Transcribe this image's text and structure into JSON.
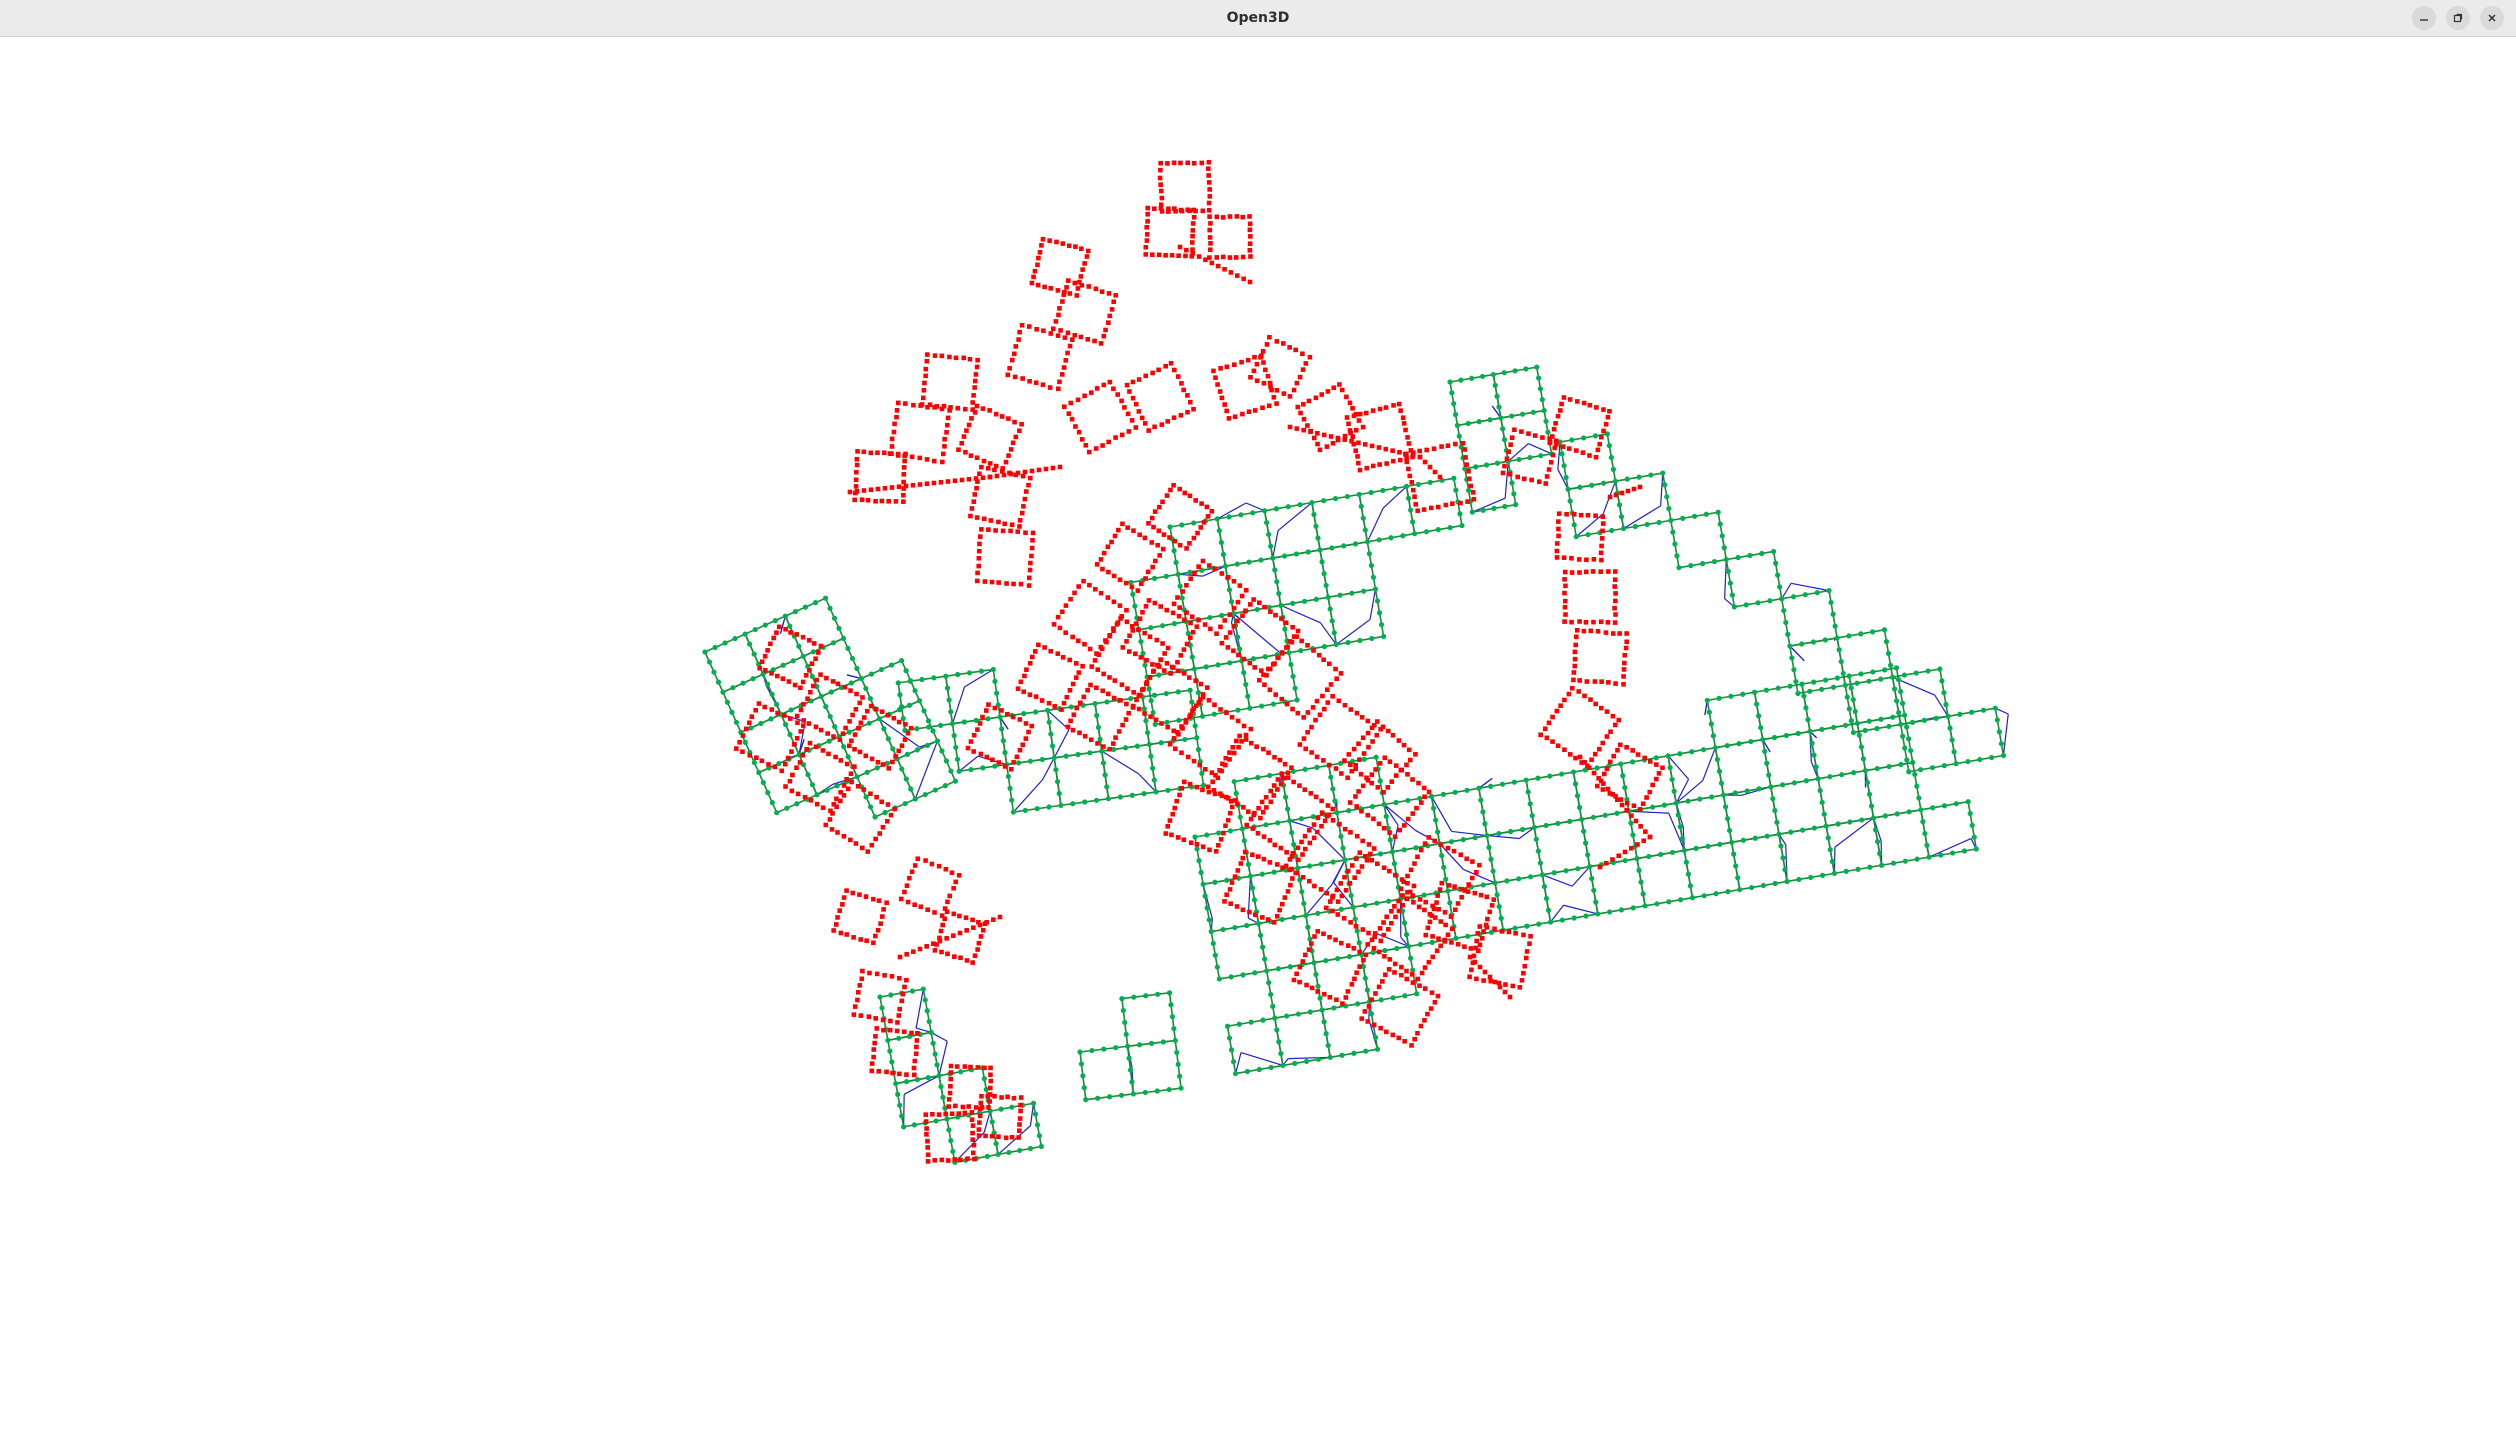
{
  "window": {
    "title": "Open3D",
    "controls": [
      {
        "name": "minimize",
        "icon": "minimize-icon"
      },
      {
        "name": "maximize",
        "icon": "maximize-icon"
      },
      {
        "name": "close",
        "icon": "close-icon"
      }
    ]
  },
  "scene": {
    "background": "#ffffff",
    "colors": {
      "reference_path_points": "#ff0000",
      "graph_nodes": "#00b050",
      "graph_edges": "#1f1fd0",
      "path_edges": "#1a8a3a"
    }
  }
}
